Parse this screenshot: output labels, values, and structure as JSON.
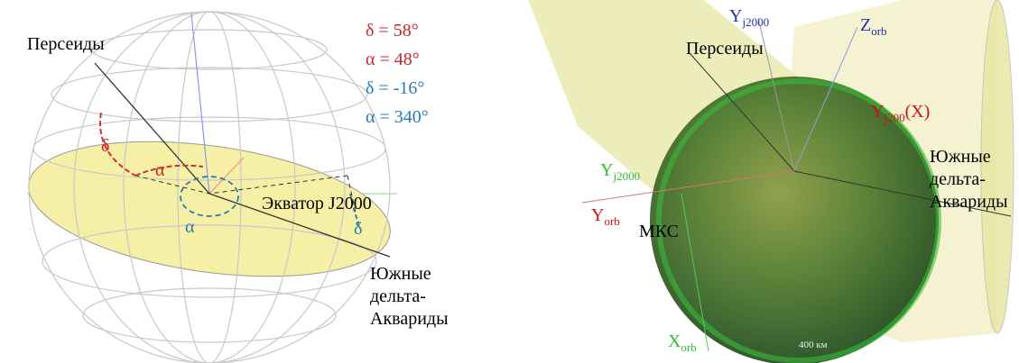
{
  "left": {
    "perseids": "Персеиды",
    "dec_perseids": "δ = 58°",
    "ra_perseids": "α = 48°",
    "dec_aquariids": "δ = -16°",
    "ra_aquariids": "α = 340°",
    "angle_delta_red": "δ",
    "angle_alpha_red": "α",
    "equator": "Экватор J2000",
    "angle_alpha_blue": "α",
    "angle_delta_blue": "δ",
    "aquariids": [
      "Южные",
      "дельта-",
      "Аквариды"
    ]
  },
  "right": {
    "y_j2000_top": {
      "base": "Y",
      "sub": "j2000"
    },
    "z_orb": {
      "base": "Z",
      "sub": "orb"
    },
    "perseids": "Персеиды",
    "y_j200_x": {
      "base": "Y",
      "sub": "j200",
      "suffix": "(X)"
    },
    "aquariids": [
      "Южные",
      "дельта-",
      "Аквариды"
    ],
    "y_j2000_green": {
      "base": "Y",
      "sub": "j2000"
    },
    "y_orb": {
      "base": "Y",
      "sub": "orb"
    },
    "iss": "МКС",
    "x_orb": {
      "base": "X",
      "sub": "orb"
    },
    "distance": "400 км"
  }
}
